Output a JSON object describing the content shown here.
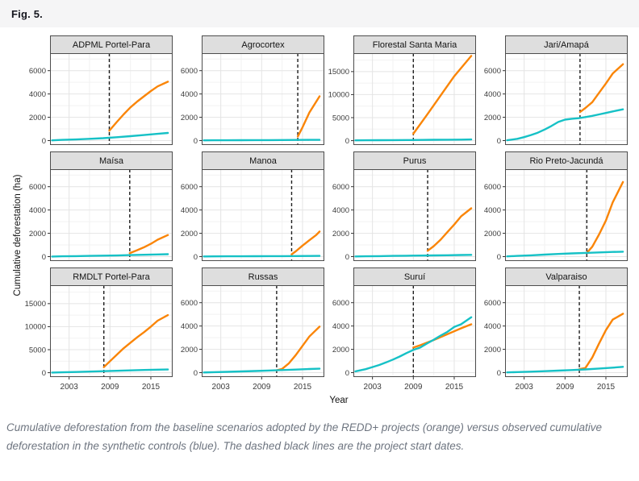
{
  "header": {
    "fig_label": "Fig. 5."
  },
  "axes": {
    "x_label": "Year",
    "y_label": "Cumulative deforestation (ha)",
    "x_ticks": [
      2003,
      2009,
      2015
    ],
    "x_minor_gridlines": [
      2006,
      2012,
      2018
    ],
    "x_range": [
      2000.2,
      2018.2
    ]
  },
  "colors": {
    "baseline_orange": "#fa8507",
    "control_blue": "#16c1c6",
    "dashed_line": "#1f1f1f",
    "strip_bg": "#dedede",
    "panel_border": "#4d4d4d",
    "grid_major": "#e4e4e4",
    "grid_minor": "#f2f2f2",
    "tick_text": "#3c3c3c"
  },
  "caption": {
    "text": "Cumulative deforestation from the baseline scenarios adopted by the REDD+ projects (orange) versus observed cumulative deforestation in the synthetic controls (blue). The dashed black lines are the project start dates."
  },
  "chart_data": {
    "type": "line",
    "series_legend": [
      {
        "name": "REDD+ project baseline scenario",
        "color_key": "baseline_orange"
      },
      {
        "name": "Synthetic control (observed)",
        "color_key": "control_blue"
      }
    ],
    "y_axis_types": {
      "A": {
        "ticks": [
          0,
          2000,
          4000,
          6000
        ],
        "minor": [
          1000,
          3000,
          5000,
          7000
        ],
        "ylim": [
          -380,
          7500
        ]
      },
      "B": {
        "ticks": [
          0,
          5000,
          10000,
          15000
        ],
        "minor": [
          2500,
          7500,
          12500,
          17500
        ],
        "ylim": [
          -950,
          19000
        ]
      }
    },
    "facets": [
      {
        "title": "ADPML Portel-Para",
        "slug": "adpml-portel-para",
        "y_type": "A",
        "start_year": 2008.9,
        "control": {
          "x": [
            2000.5,
            2002,
            2004,
            2006,
            2008,
            2010,
            2012,
            2014,
            2016,
            2017.5
          ],
          "y": [
            20,
            60,
            100,
            150,
            210,
            290,
            380,
            480,
            580,
            660
          ]
        },
        "baseline": {
          "x": [
            2008.9,
            2010,
            2011,
            2012,
            2013,
            2014,
            2015,
            2016,
            2017.5
          ],
          "y": [
            850,
            1600,
            2250,
            2850,
            3350,
            3800,
            4250,
            4650,
            5050
          ]
        }
      },
      {
        "title": "Agrocortex",
        "slug": "agrocortex",
        "y_type": "A",
        "start_year": 2014.3,
        "control": {
          "x": [
            2000.5,
            2002,
            2004,
            2006,
            2008,
            2010,
            2012,
            2014,
            2016,
            2017.5
          ],
          "y": [
            20,
            25,
            30,
            35,
            40,
            45,
            50,
            55,
            60,
            65
          ]
        },
        "baseline": {
          "x": [
            2014.3,
            2015,
            2016,
            2017.5
          ],
          "y": [
            350,
            1150,
            2400,
            3800
          ]
        }
      },
      {
        "title": "Florestal Santa Maria",
        "slug": "florestal-santa-maria",
        "y_type": "B",
        "start_year": 2009,
        "control": {
          "x": [
            2000.5,
            2002,
            2004,
            2006,
            2008,
            2010,
            2012,
            2014,
            2016,
            2017.5
          ],
          "y": [
            60,
            80,
            100,
            120,
            140,
            160,
            180,
            200,
            230,
            260
          ]
        },
        "baseline": {
          "x": [
            2009,
            2011,
            2013,
            2015,
            2017.5
          ],
          "y": [
            1500,
            5600,
            9800,
            14000,
            18400
          ]
        }
      },
      {
        "title": "Jari/Amapá",
        "slug": "jari-amapa",
        "y_type": "A",
        "start_year": 2011.2,
        "control": {
          "x": [
            2000.5,
            2002,
            2003,
            2004,
            2005,
            2006,
            2007,
            2008,
            2009,
            2010,
            2011,
            2012,
            2013,
            2014,
            2015,
            2016,
            2017.5
          ],
          "y": [
            30,
            150,
            300,
            480,
            680,
            950,
            1250,
            1600,
            1800,
            1870,
            1920,
            2020,
            2120,
            2250,
            2370,
            2500,
            2680
          ]
        },
        "baseline": {
          "x": [
            2011.2,
            2012,
            2013,
            2014,
            2015,
            2016,
            2017.5
          ],
          "y": [
            2450,
            2800,
            3300,
            4100,
            4900,
            5750,
            6550
          ]
        }
      },
      {
        "title": "Maísa",
        "slug": "maisa",
        "y_type": "A",
        "start_year": 2011.9,
        "control": {
          "x": [
            2000.5,
            2002,
            2004,
            2006,
            2008,
            2010,
            2012,
            2014,
            2016,
            2017.5
          ],
          "y": [
            10,
            25,
            40,
            60,
            80,
            100,
            130,
            160,
            190,
            210
          ]
        },
        "baseline": {
          "x": [
            2011.9,
            2013,
            2014,
            2015,
            2016,
            2017.5
          ],
          "y": [
            300,
            550,
            800,
            1100,
            1450,
            1850
          ]
        }
      },
      {
        "title": "Manoa",
        "slug": "manoa",
        "y_type": "A",
        "start_year": 2013.4,
        "control": {
          "x": [
            2000.5,
            2002,
            2004,
            2006,
            2008,
            2010,
            2012,
            2014,
            2016,
            2017.5
          ],
          "y": [
            15,
            20,
            25,
            30,
            35,
            40,
            45,
            50,
            55,
            60
          ]
        },
        "baseline": {
          "x": [
            2013.4,
            2014,
            2015,
            2016,
            2017,
            2017.5
          ],
          "y": [
            200,
            450,
            950,
            1400,
            1850,
            2150
          ]
        }
      },
      {
        "title": "Purus",
        "slug": "purus",
        "y_type": "A",
        "start_year": 2011.1,
        "control": {
          "x": [
            2000.5,
            2002,
            2004,
            2006,
            2008,
            2010,
            2012,
            2014,
            2016,
            2017.5
          ],
          "y": [
            15,
            30,
            45,
            60,
            75,
            90,
            105,
            120,
            140,
            155
          ]
        },
        "baseline": {
          "x": [
            2011.1,
            2012,
            2013,
            2014,
            2015,
            2016,
            2017.5
          ],
          "y": [
            500,
            900,
            1450,
            2100,
            2750,
            3450,
            4150
          ]
        }
      },
      {
        "title": "Rio Preto-Jacundá",
        "slug": "rio-preto-jacunda",
        "y_type": "A",
        "start_year": 2012.2,
        "control": {
          "x": [
            2000.5,
            2002,
            2004,
            2006,
            2008,
            2010,
            2012,
            2014,
            2016,
            2017.5
          ],
          "y": [
            20,
            60,
            110,
            170,
            230,
            280,
            320,
            360,
            400,
            420
          ]
        },
        "baseline": {
          "x": [
            2012.2,
            2013,
            2014,
            2015,
            2016,
            2017.5
          ],
          "y": [
            320,
            850,
            1900,
            3100,
            4650,
            6400
          ]
        }
      },
      {
        "title": "RMDLT Portel-Para",
        "slug": "rmdlt-portel-para",
        "y_type": "B",
        "start_year": 2008.1,
        "control": {
          "x": [
            2000.5,
            2002,
            2004,
            2006,
            2008,
            2010,
            2012,
            2014,
            2016,
            2017.5
          ],
          "y": [
            30,
            90,
            160,
            240,
            330,
            420,
            510,
            590,
            660,
            700
          ]
        },
        "baseline": {
          "x": [
            2008.1,
            2009,
            2010,
            2011,
            2012,
            2013,
            2014,
            2015,
            2016,
            2017.5
          ],
          "y": [
            1200,
            2500,
            3900,
            5300,
            6500,
            7700,
            8800,
            10000,
            11300,
            12500
          ]
        }
      },
      {
        "title": "Russas",
        "slug": "russas",
        "y_type": "A",
        "start_year": 2011.2,
        "control": {
          "x": [
            2000.5,
            2002,
            2004,
            2006,
            2008,
            2010,
            2012,
            2014,
            2016,
            2017.5
          ],
          "y": [
            15,
            40,
            70,
            105,
            140,
            180,
            220,
            265,
            310,
            340
          ]
        },
        "baseline": {
          "x": [
            2011.2,
            2012,
            2013,
            2014,
            2015,
            2016,
            2017.5
          ],
          "y": [
            200,
            320,
            800,
            1500,
            2300,
            3100,
            3950
          ]
        }
      },
      {
        "title": "Suruí",
        "slug": "surui",
        "y_type": "A",
        "start_year": 2009,
        "control": {
          "x": [
            2000.5,
            2002,
            2003,
            2004,
            2005,
            2006,
            2007,
            2008,
            2009,
            2010,
            2011,
            2012,
            2013,
            2014,
            2015,
            2016,
            2017.5
          ],
          "y": [
            110,
            300,
            480,
            660,
            880,
            1120,
            1380,
            1680,
            1950,
            2150,
            2500,
            2820,
            3180,
            3500,
            3920,
            4150,
            4750
          ]
        },
        "baseline": {
          "x": [
            2009,
            2010,
            2012,
            2014,
            2016,
            2017.5
          ],
          "y": [
            2150,
            2350,
            2800,
            3300,
            3800,
            4150
          ]
        }
      },
      {
        "title": "Valparaiso",
        "slug": "valparaiso",
        "y_type": "A",
        "start_year": 2011.1,
        "control": {
          "x": [
            2000.5,
            2002,
            2004,
            2006,
            2008,
            2010,
            2012,
            2014,
            2016,
            2017.5
          ],
          "y": [
            20,
            50,
            85,
            125,
            170,
            220,
            280,
            350,
            430,
            500
          ]
        },
        "baseline": {
          "x": [
            2011.1,
            2012,
            2013,
            2014,
            2015,
            2016,
            2017.5
          ],
          "y": [
            300,
            400,
            1300,
            2500,
            3650,
            4550,
            5050
          ]
        }
      }
    ]
  }
}
